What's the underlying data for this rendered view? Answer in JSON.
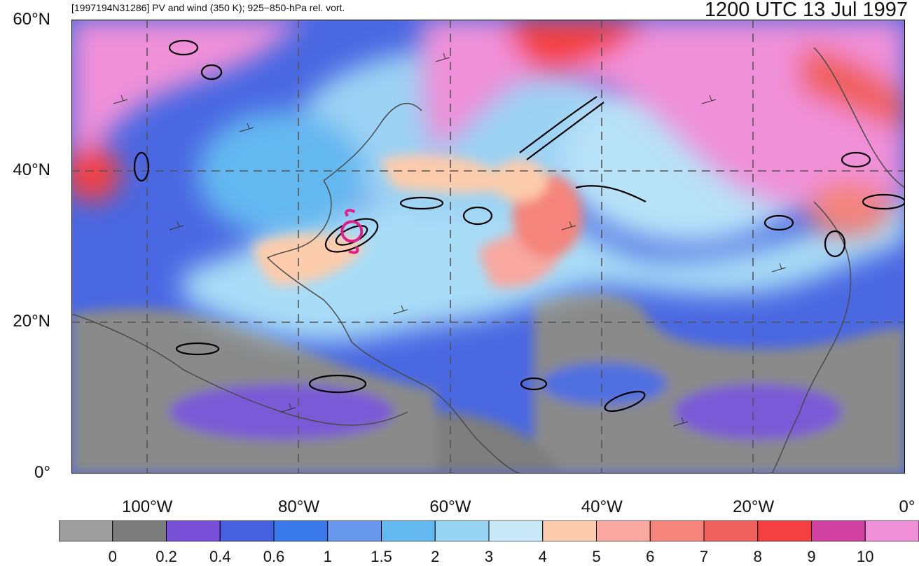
{
  "header": {
    "left_title": "[1997194N31286] PV and wind (350 K); 925−850-hPa rel. vort.",
    "right_title": "1200 UTC 13 Jul 1997"
  },
  "map": {
    "lat_labels": [
      {
        "text": "60°N",
        "lat": 60
      },
      {
        "text": "40°N",
        "lat": 40
      },
      {
        "text": "20°N",
        "lat": 20
      },
      {
        "text": "0°",
        "lat": 0
      }
    ],
    "lon_labels": [
      {
        "text": "100°W",
        "lon": -100
      },
      {
        "text": "80°W",
        "lon": -80
      },
      {
        "text": "60°W",
        "lon": -60
      },
      {
        "text": "40°W",
        "lon": -40
      },
      {
        "text": "20°W",
        "lon": -20
      },
      {
        "text": "0°",
        "lon": 0
      }
    ],
    "lon_range": [
      -110,
      0
    ],
    "lat_range": [
      0,
      60
    ],
    "storm_symbol": {
      "name": "tropical-cyclone-icon",
      "lon": -73,
      "lat": 32,
      "color": "#e0208a"
    }
  },
  "colorbar": {
    "colors": [
      "#9e9e9e",
      "#7c7c7c",
      "#7850d8",
      "#4660e0",
      "#3878e8",
      "#6898ec",
      "#64b8f0",
      "#98d4f4",
      "#c8e8f8",
      "#fcccac",
      "#f8a8a0",
      "#f4847c",
      "#f0605c",
      "#f44040",
      "#d040a0",
      "#f090d8"
    ],
    "labels": [
      "0",
      "0.2",
      "0.4",
      "0.6",
      "1",
      "1.5",
      "2",
      "3",
      "4",
      "5",
      "6",
      "7",
      "8",
      "9",
      "10"
    ]
  }
}
